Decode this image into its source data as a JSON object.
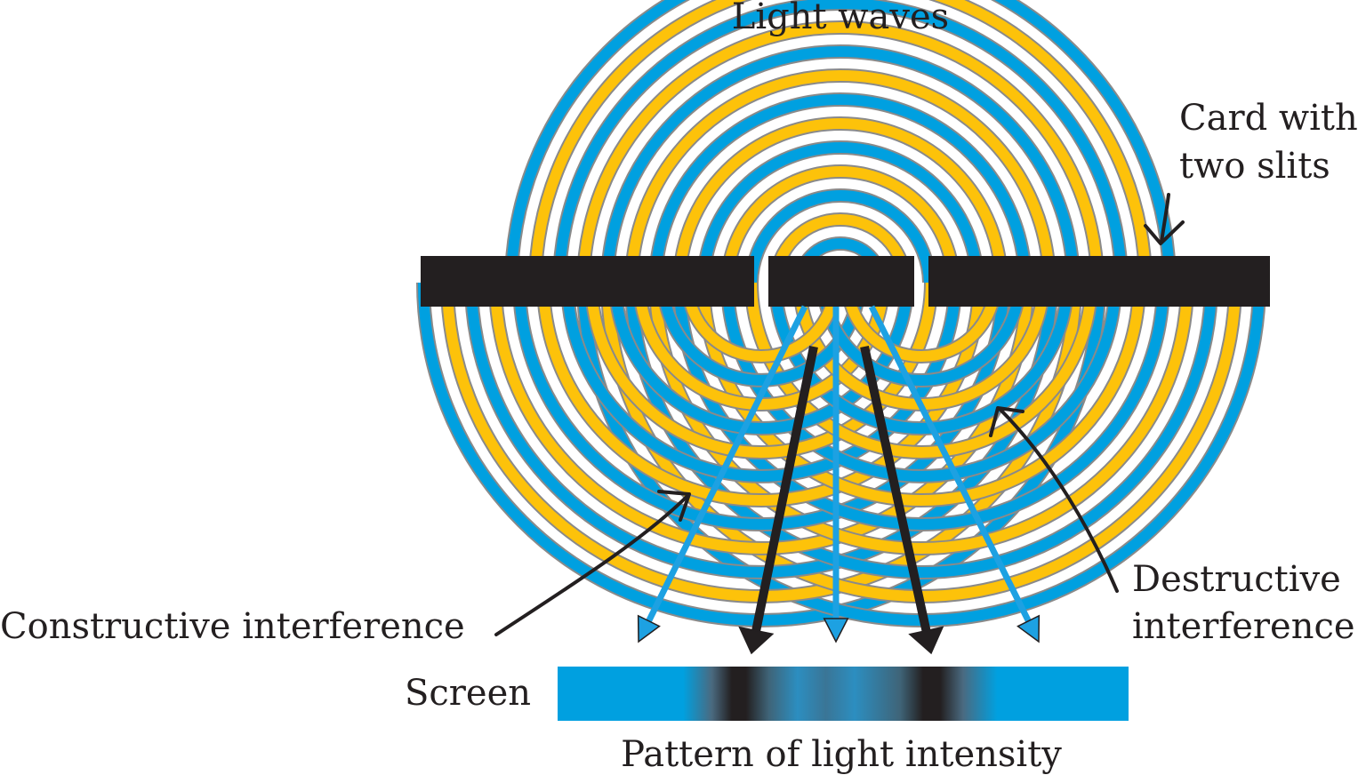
{
  "labels": {
    "title": "Light waves",
    "card_line1": "Card with",
    "card_line2": "two slits",
    "constructive": "Constructive interference",
    "destructive_line1": "Destructive",
    "destructive_line2": "interference",
    "screen": "Screen",
    "pattern": "Pattern of light intensity"
  },
  "colors": {
    "wave_blue": "#00a0e0",
    "wave_yellow": "#fdc20a",
    "wave_outline": "#8a8a8a",
    "card": "#231f20",
    "screen_bright": "#00a0e0",
    "screen_dark": "#231f20",
    "arrow_black": "#231f20",
    "arrow_blue": "#1da1e2"
  },
  "icons": {
    "card_pointer": "arrow-down-icon",
    "constructive_pointer": "arrow-pointer-icon",
    "destructive_pointer": "arrow-pointer-icon"
  }
}
